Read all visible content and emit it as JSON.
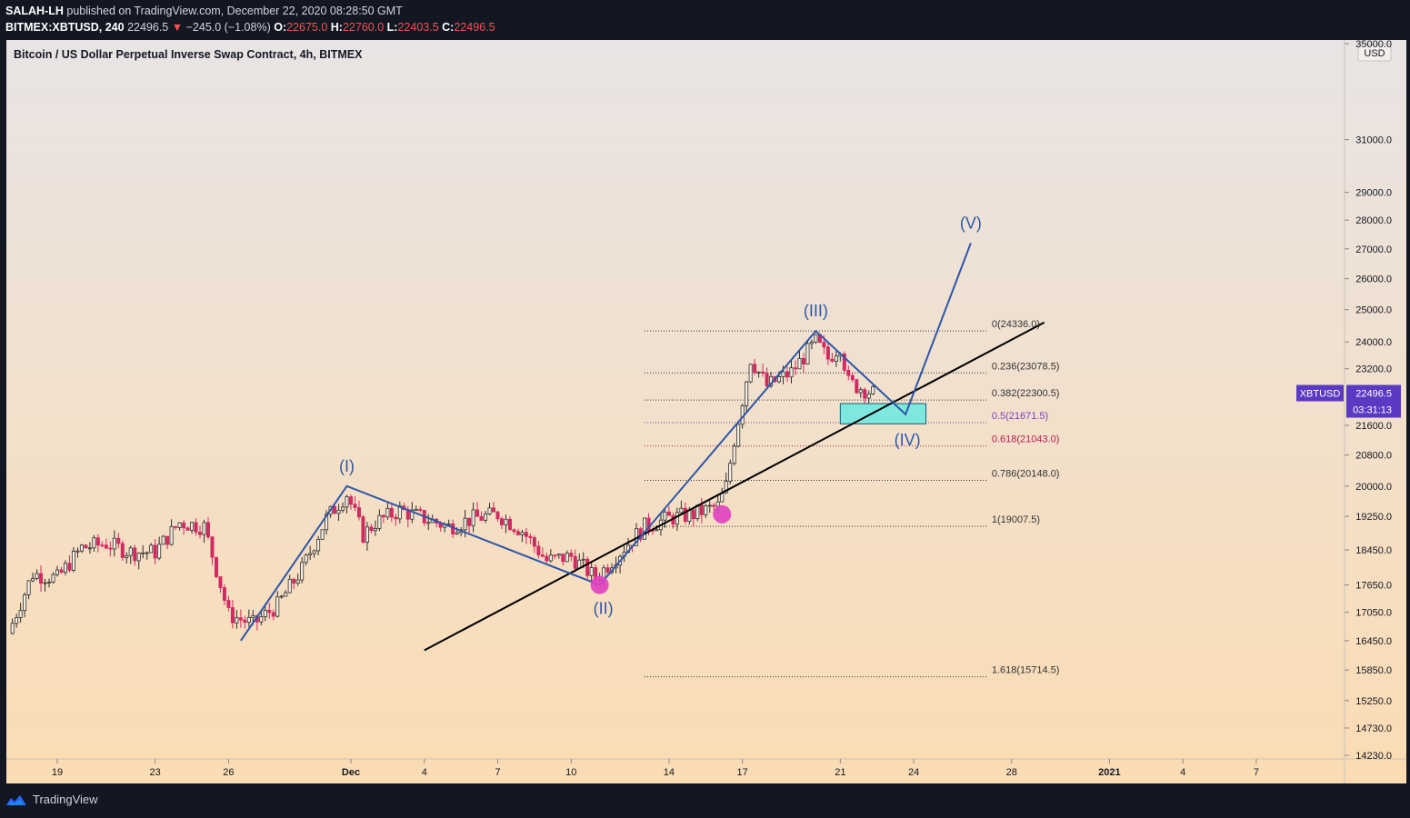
{
  "header": {
    "line1": {
      "author": "SALAH-LH",
      "rest": "published on TradingView.com, December 22, 2020 08:28:50 GMT"
    },
    "line2": {
      "symbol": "BITMEX:XBTUSD, 240",
      "last": "22496.5",
      "arrow": "▼",
      "change": "−245.0 (−1.08%)",
      "o_label": "O:",
      "o_value": "22675.0",
      "h_label": "H:",
      "h_value": "22760.0",
      "l_label": "L:",
      "l_value": "22403.5",
      "c_label": "C:",
      "c_value": "22496.5"
    }
  },
  "footer": {
    "brand": "TradingView"
  },
  "chart_data": {
    "type": "candlestick",
    "title": "Bitcoin / US Dollar Perpetual Inverse Swap Contract, 4h, BITMEX",
    "currency": "USD",
    "scale": "log",
    "ylim": [
      14230,
      35000
    ],
    "y_ticks": [
      "35000.0",
      "31000.0",
      "29000.0",
      "28000.0",
      "27000.0",
      "26000.0",
      "25000.0",
      "24000.0",
      "23200.0",
      "21600.0",
      "20800.0",
      "20000.0",
      "19250.0",
      "18450.0",
      "17650.0",
      "17050.0",
      "16450.0",
      "15850.0",
      "15250.0",
      "14730.0",
      "14230.0"
    ],
    "x_ticks": [
      {
        "label": "19",
        "date": "2020-11-19"
      },
      {
        "label": "23",
        "date": "2020-11-23"
      },
      {
        "label": "26",
        "date": "2020-11-26"
      },
      {
        "label": "Dec",
        "date": "2020-12-01"
      },
      {
        "label": "4",
        "date": "2020-12-04"
      },
      {
        "label": "7",
        "date": "2020-12-07"
      },
      {
        "label": "10",
        "date": "2020-12-10"
      },
      {
        "label": "14",
        "date": "2020-12-14"
      },
      {
        "label": "17",
        "date": "2020-12-17"
      },
      {
        "label": "21",
        "date": "2020-12-21"
      },
      {
        "label": "24",
        "date": "2020-12-24"
      },
      {
        "label": "28",
        "date": "2020-12-28"
      },
      {
        "label": "2021",
        "date": "2021-01-01"
      },
      {
        "label": "4",
        "date": "2021-01-04"
      },
      {
        "label": "7",
        "date": "2021-01-07"
      }
    ],
    "price_path": [
      {
        "date": "2020-11-17T00:00",
        "price": 16600
      },
      {
        "date": "2020-11-18T00:00",
        "price": 17900
      },
      {
        "date": "2020-11-19T00:00",
        "price": 17800
      },
      {
        "date": "2020-11-20T00:00",
        "price": 18500
      },
      {
        "date": "2020-11-21T00:00",
        "price": 18600
      },
      {
        "date": "2020-11-22T00:00",
        "price": 18400
      },
      {
        "date": "2020-11-23T00:00",
        "price": 18400
      },
      {
        "date": "2020-11-24T00:00",
        "price": 19100
      },
      {
        "date": "2020-11-25T00:00",
        "price": 19000
      },
      {
        "date": "2020-11-26T00:00",
        "price": 17000
      },
      {
        "date": "2020-11-27T00:00",
        "price": 16800
      },
      {
        "date": "2020-11-28T00:00",
        "price": 17200
      },
      {
        "date": "2020-11-29T00:00",
        "price": 18000
      },
      {
        "date": "2020-11-30T00:00",
        "price": 19200
      },
      {
        "date": "2020-11-30T20:00",
        "price": 19800
      },
      {
        "date": "2020-12-01T12:00",
        "price": 18800
      },
      {
        "date": "2020-12-02T00:00",
        "price": 19100
      },
      {
        "date": "2020-12-03T00:00",
        "price": 19400
      },
      {
        "date": "2020-12-04T00:00",
        "price": 19200
      },
      {
        "date": "2020-12-05T00:00",
        "price": 19000
      },
      {
        "date": "2020-12-06T00:00",
        "price": 19200
      },
      {
        "date": "2020-12-07T00:00",
        "price": 19300
      },
      {
        "date": "2020-12-08T00:00",
        "price": 18900
      },
      {
        "date": "2020-12-09T00:00",
        "price": 18200
      },
      {
        "date": "2020-12-10T00:00",
        "price": 18300
      },
      {
        "date": "2020-12-11T00:00",
        "price": 17800
      },
      {
        "date": "2020-12-12T00:00",
        "price": 18400
      },
      {
        "date": "2020-12-13T00:00",
        "price": 19000
      },
      {
        "date": "2020-12-14T00:00",
        "price": 19200
      },
      {
        "date": "2020-12-15T00:00",
        "price": 19300
      },
      {
        "date": "2020-12-16T00:00",
        "price": 19500
      },
      {
        "date": "2020-12-16T08:00",
        "price": 20000
      },
      {
        "date": "2020-12-16T16:00",
        "price": 21200
      },
      {
        "date": "2020-12-17T00:00",
        "price": 22300
      },
      {
        "date": "2020-12-17T08:00",
        "price": 23500
      },
      {
        "date": "2020-12-18T00:00",
        "price": 22700
      },
      {
        "date": "2020-12-19T00:00",
        "price": 23100
      },
      {
        "date": "2020-12-20T00:00",
        "price": 24000
      },
      {
        "date": "2020-12-20T12:00",
        "price": 23500
      },
      {
        "date": "2020-12-21T00:00",
        "price": 23900
      },
      {
        "date": "2020-12-21T08:00",
        "price": 22800
      },
      {
        "date": "2020-12-22T08:00",
        "price": 22496.5
      }
    ],
    "fibonacci": [
      {
        "level": "0",
        "price": 24336.0,
        "label": "0(24336.0)",
        "color": "#333333"
      },
      {
        "level": "0.236",
        "price": 23078.5,
        "label": "0.236(23078.5)",
        "color": "#333333"
      },
      {
        "level": "0.382",
        "price": 22300.5,
        "label": "0.382(22300.5)",
        "color": "#333333"
      },
      {
        "level": "0.5",
        "price": 21671.5,
        "label": "0.5(21671.5)",
        "color": "#7b3fbf"
      },
      {
        "level": "0.618",
        "price": 21043.0,
        "label": "0.618(21043.0)",
        "color": "#b2204f"
      },
      {
        "level": "0.786",
        "price": 20148.0,
        "label": "0.786(20148.0)",
        "color": "#333333"
      },
      {
        "level": "1",
        "price": 19007.5,
        "label": "1(19007.5)",
        "color": "#333333"
      },
      {
        "level": "1.618",
        "price": 15714.5,
        "label": "1.618(15714.5)",
        "color": "#333333"
      }
    ],
    "wave_points": [
      {
        "label": "",
        "date": "2020-11-26T12:00",
        "price": 16450
      },
      {
        "label": "(I)",
        "date": "2020-11-30T20:00",
        "price": 20000
      },
      {
        "label": "(II)",
        "date": "2020-12-11T04:00",
        "price": 17650
      },
      {
        "label": "(III)",
        "date": "2020-12-20T00:00",
        "price": 24336
      },
      {
        "label": "(IV)",
        "date": "2020-12-23T16:00",
        "price": 21900
      },
      {
        "label": "(V)",
        "date": "2020-12-26T08:00",
        "price": 27200
      }
    ],
    "trendline": [
      {
        "date": "2020-12-04T00:00",
        "price": 16250
      },
      {
        "date": "2020-12-29T08:00",
        "price": 24600
      }
    ],
    "target_zone": {
      "date_from": "2020-12-21T00:00",
      "date_to": "2020-12-24T12:00",
      "price_top": 22200,
      "price_bottom": 21640
    },
    "touch_points": [
      {
        "date": "2020-12-11T04:00",
        "price": 17650
      },
      {
        "date": "2020-12-16T04:00",
        "price": 19300
      }
    ],
    "price_label": {
      "symbol": "XBTUSD",
      "price": "22496.5",
      "countdown": "03:31:13"
    },
    "colors": {
      "wave_line": "#2e56a8",
      "wave_label": "#2e56a8",
      "trendline": "#000000",
      "zone_fill": "#7fe8de",
      "zone_border": "#1a5a77",
      "touch_marker": "#e040c0",
      "up_candle": "#2d2d2d",
      "down_candle": "#d12b62",
      "price_label_bg": "#5b39c2",
      "bg_top": "#e8e4e4",
      "bg_bottom": "#fbdcb3"
    }
  }
}
